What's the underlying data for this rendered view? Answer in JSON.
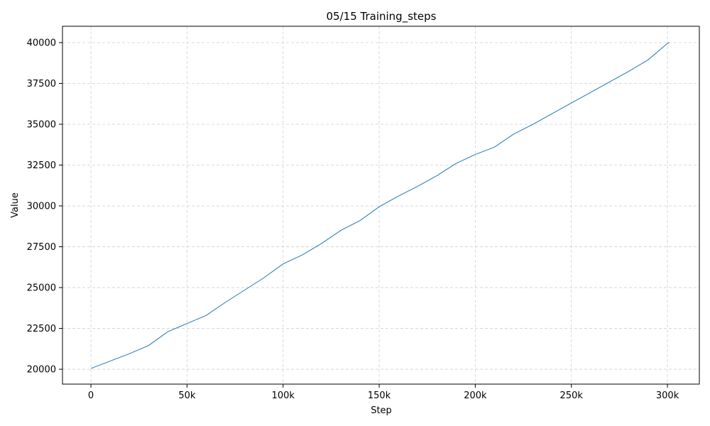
{
  "chart_data": {
    "type": "line",
    "title": "05/15  Training_steps",
    "x_label": "Step",
    "y_label": "Value",
    "x": [
      0,
      10000,
      20000,
      30000,
      40000,
      50000,
      60000,
      70000,
      80000,
      90000,
      100000,
      110000,
      120000,
      130000,
      140000,
      150000,
      160000,
      170000,
      180000,
      190000,
      200000,
      210000,
      220000,
      230000,
      240000,
      250000,
      260000,
      270000,
      280000,
      290000,
      300000,
      301000
    ],
    "series": [
      {
        "name": "Training_steps",
        "color": "#1f77b4",
        "values": [
          20050,
          20500,
          20950,
          21450,
          22300,
          22800,
          23300,
          24100,
          24850,
          25600,
          26450,
          27000,
          27700,
          28500,
          29100,
          29950,
          30600,
          31200,
          31850,
          32600,
          33150,
          33600,
          34400,
          35000,
          35650,
          36300,
          36950,
          37600,
          38250,
          38950,
          39950,
          40000
        ]
      }
    ],
    "xlim": [
      -14800,
      316600
    ],
    "ylim": [
      19090,
      41000
    ],
    "xticks": [
      0,
      {
        "value": 50000,
        "label": "50k"
      },
      {
        "value": 100000,
        "label": "100k"
      },
      {
        "value": 150000,
        "label": "150k"
      },
      {
        "value": 200000,
        "label": "200k"
      },
      {
        "value": 250000,
        "label": "250k"
      },
      {
        "value": 300000,
        "label": "300k"
      }
    ],
    "yticks": [
      20000,
      22500,
      25000,
      27500,
      30000,
      32500,
      35000,
      37500,
      40000
    ],
    "grid": true
  }
}
